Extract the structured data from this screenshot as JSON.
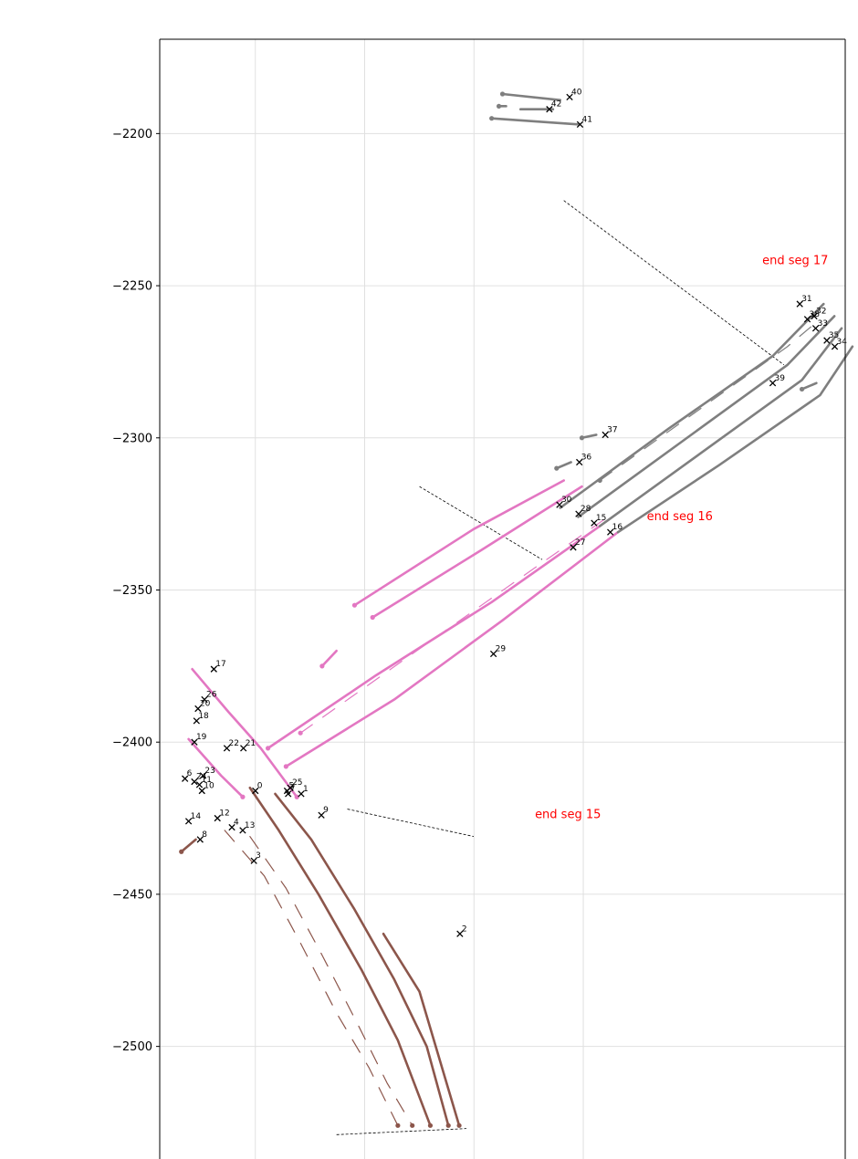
{
  "chart_data": {
    "type": "line",
    "title": "",
    "xlabel": "",
    "ylabel": "",
    "grid": true,
    "xlim": [
      -30,
      160
    ],
    "ylim": [
      -2537,
      -2169
    ],
    "y_ticks": [
      -2200,
      -2250,
      -2300,
      -2350,
      -2400,
      -2450,
      -2500
    ],
    "y_tick_labels": [
      "−2200",
      "−2250",
      "−2300",
      "−2350",
      "−2400",
      "−2450",
      "−2500"
    ],
    "x_gridlines": [
      -3.5,
      26.8,
      57.1,
      87.4
    ],
    "colors": {
      "brown": "#8c564b",
      "pink": "#e377c2",
      "gray": "#7f7f7f",
      "annotation": "#ff0000",
      "marker": "#000000"
    },
    "series": [
      {
        "color": "brown",
        "style": "solid",
        "points": [
          [
            -5,
            -2415
          ],
          [
            3,
            -2429
          ],
          [
            14,
            -2450
          ],
          [
            26,
            -2475
          ],
          [
            36,
            -2498
          ],
          [
            45,
            -2526
          ]
        ],
        "start_marker": false,
        "end_marker": true
      },
      {
        "color": "brown",
        "style": "solid",
        "points": [
          [
            2,
            -2417
          ],
          [
            12,
            -2432
          ],
          [
            24,
            -2455
          ],
          [
            35,
            -2478
          ],
          [
            44,
            -2500
          ],
          [
            50,
            -2526
          ]
        ],
        "start_marker": false,
        "end_marker": true
      },
      {
        "color": "brown",
        "style": "solid",
        "points": [
          [
            32,
            -2463
          ],
          [
            42,
            -2482
          ],
          [
            53,
            -2526
          ]
        ],
        "start_marker": false,
        "end_marker": true
      },
      {
        "color": "brown",
        "style": "solid",
        "points": [
          [
            -24,
            -2436
          ],
          [
            -20,
            -2432
          ]
        ],
        "start_marker": true,
        "end_marker": false
      },
      {
        "color": "brown",
        "style": "dashed",
        "points": [
          [
            -12,
            -2429
          ],
          [
            -1,
            -2444
          ],
          [
            9,
            -2466
          ],
          [
            19,
            -2489
          ],
          [
            28,
            -2507
          ],
          [
            36,
            -2526
          ]
        ],
        "start_marker": false,
        "end_marker": true
      },
      {
        "color": "brown",
        "style": "dashed",
        "points": [
          [
            -5,
            -2431
          ],
          [
            5,
            -2448
          ],
          [
            15,
            -2470
          ],
          [
            25,
            -2493
          ],
          [
            33,
            -2512
          ],
          [
            40,
            -2526
          ]
        ],
        "start_marker": false,
        "end_marker": true
      },
      {
        "color": "pink",
        "style": "solid",
        "points": [
          [
            -21,
            -2376
          ],
          [
            -11,
            -2390
          ],
          [
            -2,
            -2402
          ],
          [
            8,
            -2418
          ]
        ],
        "start_marker": false,
        "end_marker": true
      },
      {
        "color": "pink",
        "style": "solid",
        "points": [
          [
            -22,
            -2399
          ],
          [
            -13,
            -2411
          ],
          [
            -7,
            -2418
          ]
        ],
        "start_marker": false,
        "end_marker": true
      },
      {
        "color": "pink",
        "style": "solid",
        "points": [
          [
            0,
            -2402
          ],
          [
            30,
            -2378
          ],
          [
            62,
            -2354
          ],
          [
            92,
            -2329
          ]
        ],
        "start_marker": true,
        "end_marker": false
      },
      {
        "color": "pink",
        "style": "solid",
        "points": [
          [
            5,
            -2408
          ],
          [
            35,
            -2386
          ],
          [
            65,
            -2360
          ],
          [
            97,
            -2331
          ]
        ],
        "start_marker": true,
        "end_marker": false
      },
      {
        "color": "pink",
        "style": "solid",
        "points": [
          [
            24,
            -2355
          ],
          [
            57,
            -2330
          ],
          [
            82,
            -2314
          ]
        ],
        "start_marker": true,
        "end_marker": false
      },
      {
        "color": "pink",
        "style": "solid",
        "points": [
          [
            29,
            -2359
          ],
          [
            59,
            -2337
          ],
          [
            87,
            -2316
          ]
        ],
        "start_marker": true,
        "end_marker": false
      },
      {
        "color": "pink",
        "style": "solid",
        "points": [
          [
            15,
            -2375
          ],
          [
            19,
            -2370
          ]
        ],
        "start_marker": true,
        "end_marker": false
      },
      {
        "color": "pink",
        "style": "dashed",
        "points": [
          [
            9,
            -2397
          ],
          [
            40,
            -2371
          ],
          [
            70,
            -2346
          ],
          [
            93,
            -2327
          ]
        ],
        "start_marker": true,
        "end_marker": false
      },
      {
        "color": "gray",
        "style": "solid",
        "points": [
          [
            81,
            -2323
          ],
          [
            111,
            -2297
          ],
          [
            140,
            -2273
          ],
          [
            154,
            -2256
          ]
        ],
        "start_marker": false,
        "end_marker": false
      },
      {
        "color": "gray",
        "style": "solid",
        "points": [
          [
            86,
            -2326
          ],
          [
            115,
            -2301
          ],
          [
            144,
            -2276
          ],
          [
            157,
            -2260
          ]
        ],
        "start_marker": false,
        "end_marker": false
      },
      {
        "color": "gray",
        "style": "solid",
        "points": [
          [
            92,
            -2329
          ],
          [
            120,
            -2305
          ],
          [
            148,
            -2281
          ],
          [
            159,
            -2264
          ]
        ],
        "start_marker": false,
        "end_marker": false
      },
      {
        "color": "gray",
        "style": "solid",
        "points": [
          [
            97,
            -2331
          ],
          [
            125,
            -2309
          ],
          [
            153,
            -2286
          ],
          [
            162,
            -2270
          ]
        ],
        "start_marker": false,
        "end_marker": false
      },
      {
        "color": "gray",
        "style": "dashed",
        "points": [
          [
            92,
            -2314
          ],
          [
            118,
            -2292
          ],
          [
            144,
            -2270
          ],
          [
            153,
            -2261
          ]
        ],
        "start_marker": true,
        "end_marker": false
      },
      {
        "color": "gray",
        "style": "solid",
        "points": [
          [
            65,
            -2187
          ],
          [
            81,
            -2189
          ]
        ],
        "start_marker": true,
        "end_marker": false
      },
      {
        "color": "gray",
        "style": "solid",
        "points": [
          [
            62,
            -2195
          ],
          [
            86,
            -2197
          ]
        ],
        "start_marker": true,
        "end_marker": false
      },
      {
        "color": "gray",
        "style": "solid",
        "points": [
          [
            64,
            -2191
          ],
          [
            66,
            -2191
          ]
        ],
        "start_marker": true,
        "end_marker": false
      },
      {
        "color": "gray",
        "style": "solid",
        "points": [
          [
            70,
            -2192
          ],
          [
            79,
            -2192
          ]
        ],
        "start_marker": false,
        "end_marker": false
      },
      {
        "color": "gray",
        "style": "solid",
        "points": [
          [
            80,
            -2310
          ],
          [
            84,
            -2308
          ]
        ],
        "start_marker": true,
        "end_marker": false
      },
      {
        "color": "gray",
        "style": "solid",
        "points": [
          [
            87,
            -2300
          ],
          [
            91,
            -2299
          ]
        ],
        "start_marker": true,
        "end_marker": false
      },
      {
        "color": "gray",
        "style": "solid",
        "points": [
          [
            148,
            -2284
          ],
          [
            152,
            -2282
          ]
        ],
        "start_marker": true,
        "end_marker": false
      }
    ],
    "dotted_lines": [
      {
        "points": [
          [
            82,
            -2222
          ],
          [
            143,
            -2276
          ]
        ]
      },
      {
        "points": [
          [
            42,
            -2316
          ],
          [
            76,
            -2340
          ]
        ]
      },
      {
        "points": [
          [
            22,
            -2422
          ],
          [
            57,
            -2431
          ]
        ]
      },
      {
        "points": [
          [
            19,
            -2529
          ],
          [
            55,
            -2527
          ]
        ]
      }
    ],
    "annotations": [
      {
        "text": "end seg 17",
        "x": 137,
        "y": -2243
      },
      {
        "text": "end seg 16",
        "x": 105,
        "y": -2327
      },
      {
        "text": "end seg 15",
        "x": 74,
        "y": -2425
      }
    ],
    "markers": [
      {
        "label": "0",
        "x": -3.5,
        "y": -2416
      },
      {
        "label": "1",
        "x": 9.2,
        "y": -2417
      },
      {
        "label": "2",
        "x": 53.2,
        "y": -2463
      },
      {
        "label": "3",
        "x": -3.9,
        "y": -2439
      },
      {
        "label": "4",
        "x": -10.0,
        "y": -2428
      },
      {
        "label": "5",
        "x": 5.3,
        "y": -2416
      },
      {
        "label": "6",
        "x": -23.0,
        "y": -2412
      },
      {
        "label": "7",
        "x": 5.6,
        "y": -2417
      },
      {
        "label": "8",
        "x": -18.8,
        "y": -2432
      },
      {
        "label": "9",
        "x": 14.8,
        "y": -2424
      },
      {
        "label": "10",
        "x": -18.3,
        "y": -2416
      },
      {
        "label": "11",
        "x": -19.0,
        "y": -2414
      },
      {
        "label": "12",
        "x": -14.0,
        "y": -2425
      },
      {
        "label": "13",
        "x": -7.0,
        "y": -2429
      },
      {
        "label": "14",
        "x": -22.0,
        "y": -2426
      },
      {
        "label": "15",
        "x": 90.4,
        "y": -2328
      },
      {
        "label": "16",
        "x": 94.9,
        "y": -2331
      },
      {
        "label": "17",
        "x": -15.0,
        "y": -2376
      },
      {
        "label": "18",
        "x": -19.8,
        "y": -2393
      },
      {
        "label": "19",
        "x": -20.4,
        "y": -2400
      },
      {
        "label": "20",
        "x": -19.4,
        "y": -2389
      },
      {
        "label": "21",
        "x": -6.8,
        "y": -2402
      },
      {
        "label": "22",
        "x": -11.4,
        "y": -2402
      },
      {
        "label": "23",
        "x": -18.0,
        "y": -2411
      },
      {
        "label": "24",
        "x": -20.4,
        "y": -2413
      },
      {
        "label": "25",
        "x": 6.2,
        "y": -2415
      },
      {
        "label": "26",
        "x": -17.6,
        "y": -2386
      },
      {
        "label": "27",
        "x": 84.6,
        "y": -2336
      },
      {
        "label": "28",
        "x": 86.1,
        "y": -2325
      },
      {
        "label": "29",
        "x": 62.5,
        "y": -2371
      },
      {
        "label": "30",
        "x": 80.8,
        "y": -2322
      },
      {
        "label": "31",
        "x": 147.4,
        "y": -2256
      },
      {
        "label": "32",
        "x": 151.4,
        "y": -2260
      },
      {
        "label": "33",
        "x": 151.8,
        "y": -2264
      },
      {
        "label": "34",
        "x": 157.1,
        "y": -2270
      },
      {
        "label": "35",
        "x": 154.9,
        "y": -2268
      },
      {
        "label": "36",
        "x": 86.3,
        "y": -2308
      },
      {
        "label": "37",
        "x": 93.5,
        "y": -2299
      },
      {
        "label": "38",
        "x": 149.5,
        "y": -2261
      },
      {
        "label": "39",
        "x": 139.9,
        "y": -2282
      },
      {
        "label": "40",
        "x": 83.6,
        "y": -2188
      },
      {
        "label": "41",
        "x": 86.5,
        "y": -2197
      },
      {
        "label": "42",
        "x": 78.0,
        "y": -2192
      }
    ]
  }
}
